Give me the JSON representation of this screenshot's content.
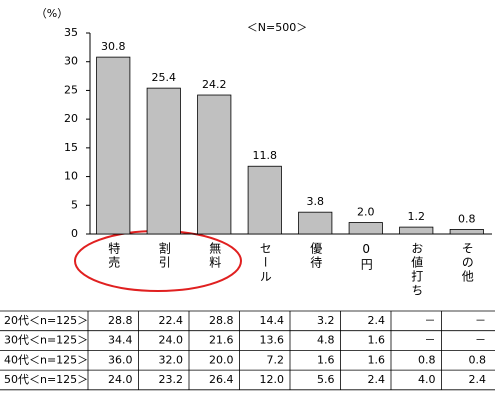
{
  "chart_data": {
    "type": "bar",
    "y_axis_label": "（%）",
    "annotation": "＜N=500＞",
    "categories": [
      "特売",
      "割引",
      "無料",
      "セール",
      "優待",
      "0円",
      "お値打ち",
      "その他"
    ],
    "values": [
      30.8,
      25.4,
      24.2,
      11.8,
      3.8,
      2.0,
      1.2,
      0.8
    ],
    "value_labels": [
      "30.8",
      "25.4",
      "24.2",
      "11.8",
      "3.8",
      "2.0",
      "1.2",
      "0.8"
    ],
    "color": "#c0c0c0",
    "ylim": [
      0,
      35
    ],
    "yticks": [
      0,
      5,
      10,
      15,
      20,
      25,
      30,
      35
    ]
  },
  "table": {
    "rows": [
      {
        "label": "20代＜n=125＞",
        "cells": [
          "28.8",
          "22.4",
          "28.8",
          "14.4",
          "3.2",
          "2.4",
          "－",
          "－"
        ]
      },
      {
        "label": "30代＜n=125＞",
        "cells": [
          "34.4",
          "24.0",
          "21.6",
          "13.6",
          "4.8",
          "1.6",
          "－",
          "－"
        ]
      },
      {
        "label": "40代＜n=125＞",
        "cells": [
          "36.0",
          "32.0",
          "20.0",
          "7.2",
          "1.6",
          "1.6",
          "0.8",
          "0.8"
        ]
      },
      {
        "label": "50代＜n=125＞",
        "cells": [
          "24.0",
          "23.2",
          "26.4",
          "12.0",
          "5.6",
          "2.4",
          "4.0",
          "2.4"
        ]
      }
    ]
  }
}
